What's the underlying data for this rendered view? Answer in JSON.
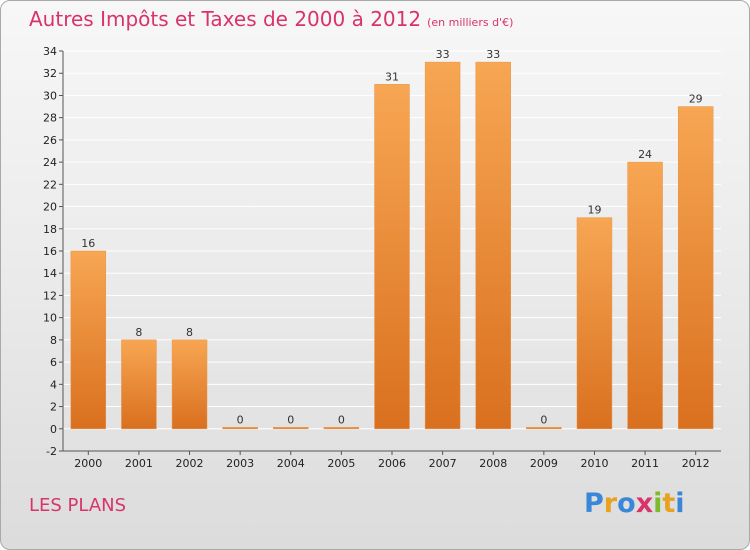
{
  "title": "Autres Impôts et Taxes de 2000 à 2012",
  "unit_label": "(en milliers d'€)",
  "commune": "LES PLANS",
  "logo": {
    "text": "Proxiti",
    "letters": [
      "P",
      "r",
      "o",
      "x",
      "i",
      "t",
      "i"
    ],
    "colors": [
      "#3a86d8",
      "#e8a21f",
      "#3a86d8",
      "#d8336a",
      "#7dbb2a",
      "#e8a21f",
      "#3a86d8"
    ]
  },
  "colors": {
    "title": "#d8336a",
    "bar_top": "#f7a653",
    "bar_bottom": "#d9701f",
    "grid": "#ffffff"
  },
  "chart_data": {
    "type": "bar",
    "title": "Autres Impôts et Taxes de 2000 à 2012",
    "subtitle": "(en milliers d'€)",
    "categories": [
      "2000",
      "2001",
      "2002",
      "2003",
      "2004",
      "2005",
      "2006",
      "2007",
      "2008",
      "2009",
      "2010",
      "2011",
      "2012"
    ],
    "values": [
      16,
      8,
      8,
      0,
      0,
      0,
      31,
      33,
      33,
      0,
      19,
      24,
      29
    ],
    "data_labels": [
      "16",
      "8",
      "8",
      "0",
      "0",
      "0",
      "31",
      "33",
      "33",
      "0",
      "19",
      "24",
      "29"
    ],
    "ylim": [
      -2,
      34
    ],
    "yticks": [
      -2,
      0,
      2,
      4,
      6,
      8,
      10,
      12,
      14,
      16,
      18,
      20,
      22,
      24,
      26,
      28,
      30,
      32,
      34
    ],
    "xlabel": "",
    "ylabel": "",
    "grid": true
  }
}
